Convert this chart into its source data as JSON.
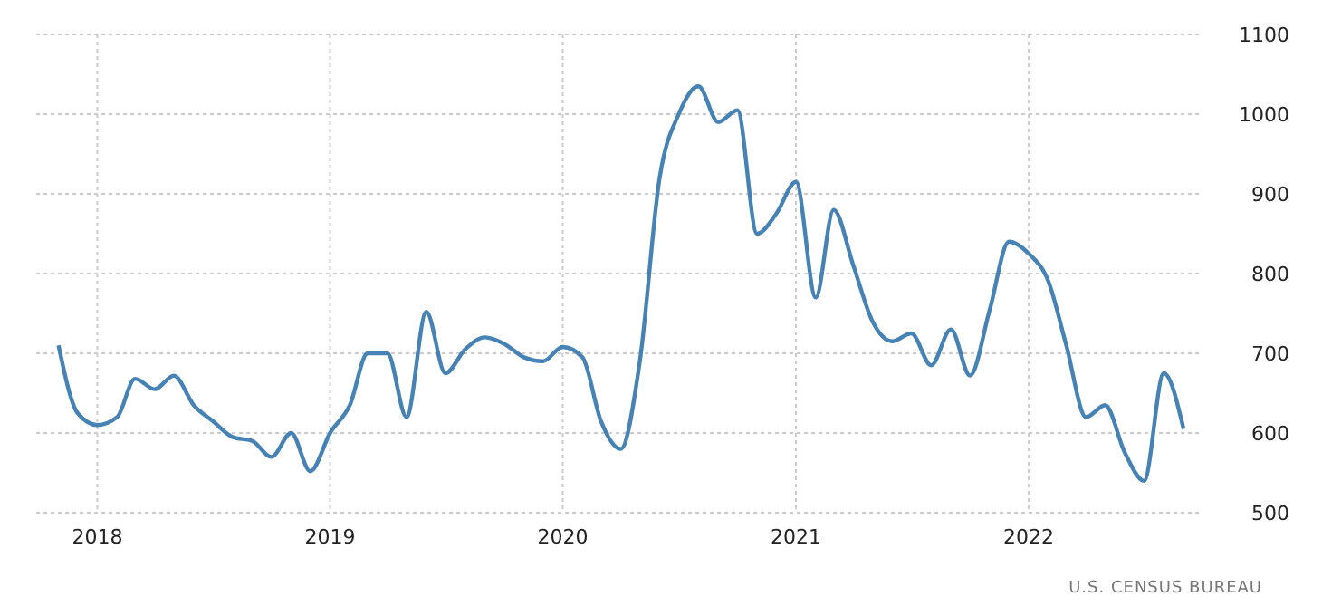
{
  "chart_data": {
    "type": "line",
    "x": [
      "2017-11",
      "2017-12",
      "2018-01",
      "2018-02",
      "2018-03",
      "2018-04",
      "2018-05",
      "2018-06",
      "2018-07",
      "2018-08",
      "2018-09",
      "2018-10",
      "2018-11",
      "2018-12",
      "2019-01",
      "2019-02",
      "2019-03",
      "2019-04",
      "2019-05",
      "2019-06",
      "2019-07",
      "2019-08",
      "2019-09",
      "2019-10",
      "2019-11",
      "2019-12",
      "2020-01",
      "2020-02",
      "2020-03",
      "2020-04",
      "2020-05",
      "2020-06",
      "2020-07",
      "2020-08",
      "2020-09",
      "2020-10",
      "2020-11",
      "2020-12",
      "2021-01",
      "2021-02",
      "2021-03",
      "2021-04",
      "2021-05",
      "2021-06",
      "2021-07",
      "2021-08",
      "2021-09",
      "2021-10",
      "2021-11",
      "2021-12",
      "2022-01",
      "2022-02",
      "2022-03",
      "2022-04",
      "2022-05",
      "2022-06",
      "2022-07",
      "2022-08",
      "2022-09"
    ],
    "series": [
      {
        "color": "#4682b4",
        "values": [
          710,
          625,
          610,
          620,
          668,
          655,
          672,
          635,
          615,
          595,
          590,
          570,
          600,
          552,
          600,
          635,
          700,
          700,
          620,
          752,
          675,
          705,
          720,
          712,
          695,
          690,
          708,
          695,
          615,
          580,
          690,
          920,
          1000,
          1035,
          990,
          1005,
          850,
          875,
          915,
          770,
          880,
          810,
          740,
          715,
          725,
          685,
          730,
          672,
          755,
          840,
          825,
          790,
          710,
          620,
          635,
          575,
          540,
          675,
          605
        ]
      }
    ],
    "xlim": [
      "2017-09-27",
      "2022-09-25"
    ],
    "xticks": [
      {
        "value": "2018-01-01",
        "label": "2018"
      },
      {
        "value": "2019-01-01",
        "label": "2019"
      },
      {
        "value": "2020-01-01",
        "label": "2020"
      },
      {
        "value": "2021-01-01",
        "label": "2021"
      },
      {
        "value": "2022-01-01",
        "label": "2022"
      }
    ],
    "ylim": [
      500,
      1100
    ],
    "yticks": [
      500,
      600,
      700,
      800,
      900,
      1000,
      1100
    ],
    "grid": true,
    "marker": "none",
    "line_style": "solid",
    "annotations": [
      "U.S. CENSUS BUREAU"
    ]
  }
}
